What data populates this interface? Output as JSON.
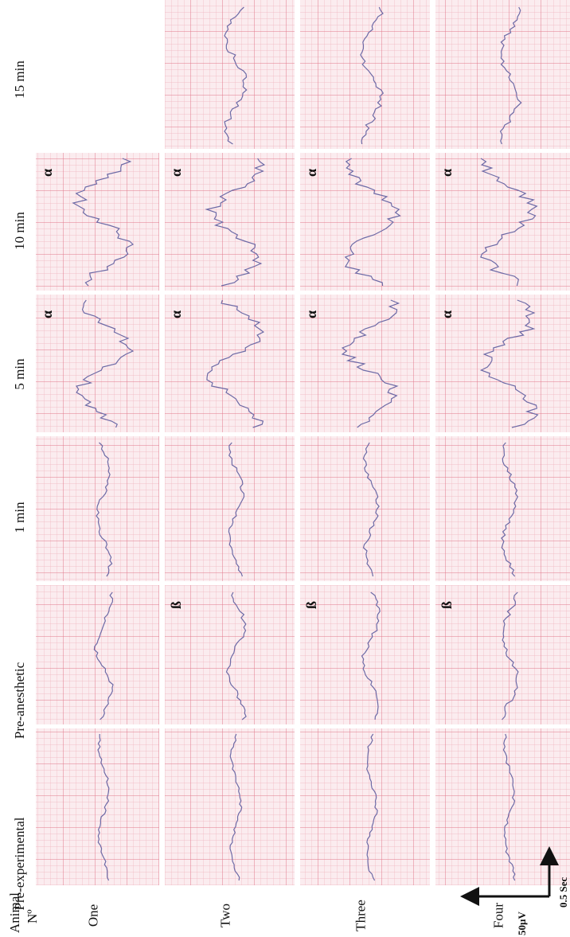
{
  "header": {
    "animal": "Animal",
    "number": "Nº"
  },
  "time_points": [
    "Pre-experimental",
    "Pre-anesthetic",
    "1 min",
    "5 min",
    "10 min",
    "15 min"
  ],
  "animals": [
    {
      "name": "One",
      "marks": [
        null,
        null,
        null,
        "α",
        "α",
        null
      ]
    },
    {
      "name": "Two",
      "marks": [
        null,
        "ß",
        null,
        "α",
        "α",
        null
      ]
    },
    {
      "name": "Three",
      "marks": [
        null,
        "ß",
        null,
        "α",
        "α",
        null
      ]
    },
    {
      "name": "Four",
      "marks": [
        null,
        "ß",
        null,
        "α",
        "α",
        null
      ]
    }
  ],
  "scale_bar": {
    "amplitude": "50µV",
    "time": "0.5 Sec"
  }
}
